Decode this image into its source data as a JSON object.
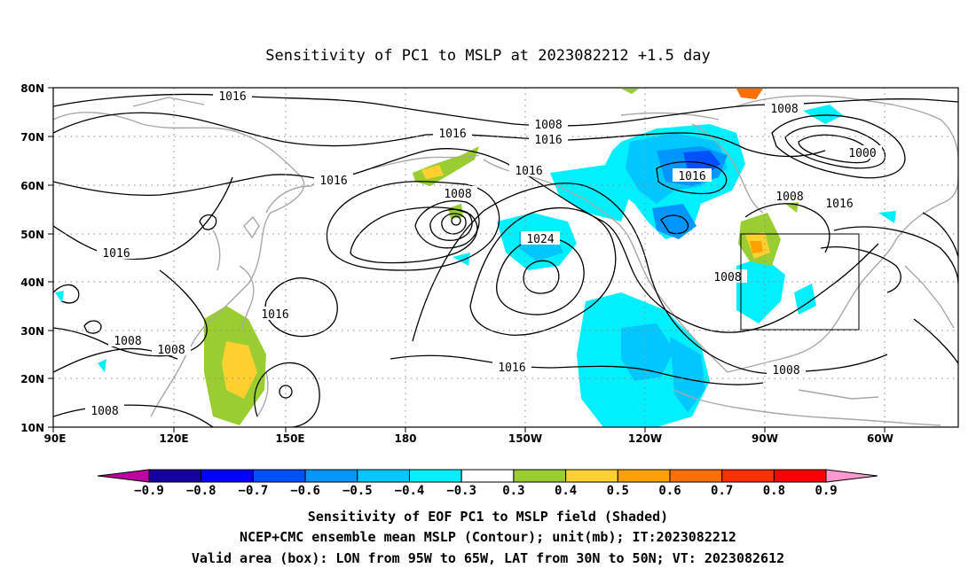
{
  "title": "Sensitivity of PC1 to MSLP at 2023082212 +1.5 day",
  "map": {
    "lon_labels": [
      "90E",
      "120E",
      "150E",
      "180",
      "150W",
      "120W",
      "90W",
      "60W"
    ],
    "lat_labels": [
      "80N",
      "70N",
      "60N",
      "50N",
      "40N",
      "30N",
      "20N",
      "10N"
    ],
    "contour_labels": [
      {
        "id": "c1",
        "text": "1016"
      },
      {
        "id": "c2",
        "text": "1008"
      },
      {
        "id": "c3",
        "text": "1016"
      },
      {
        "id": "c4",
        "text": "1016"
      },
      {
        "id": "c5",
        "text": "1008"
      },
      {
        "id": "c6",
        "text": "1016"
      },
      {
        "id": "c7",
        "text": "1000"
      },
      {
        "id": "c8",
        "text": "1016"
      },
      {
        "id": "c9",
        "text": "1016"
      },
      {
        "id": "c10",
        "text": "1008"
      },
      {
        "id": "c11",
        "text": "1008"
      },
      {
        "id": "c12",
        "text": "1016"
      },
      {
        "id": "c13",
        "text": "1024"
      },
      {
        "id": "c14",
        "text": "1016"
      },
      {
        "id": "c15",
        "text": "1008"
      },
      {
        "id": "c16",
        "text": "1016"
      },
      {
        "id": "c17",
        "text": "1008"
      },
      {
        "id": "c18",
        "text": "1008"
      },
      {
        "id": "c19",
        "text": "1016"
      },
      {
        "id": "c20",
        "text": "1008"
      },
      {
        "id": "c21",
        "text": "1008"
      }
    ],
    "valid_box": {
      "lon_west": "95W",
      "lon_east": "65W",
      "lat_south": "30N",
      "lat_north": "50N"
    }
  },
  "colorbar": {
    "labels": [
      "−0.9",
      "−0.8",
      "−0.7",
      "−0.6",
      "−0.5",
      "−0.4",
      "−0.3",
      "0.3",
      "0.4",
      "0.5",
      "0.6",
      "0.7",
      "0.8",
      "0.9"
    ],
    "colors": [
      "#1400a0",
      "#0000ff",
      "#0050ff",
      "#0096ff",
      "#00c8ff",
      "#00f0ff",
      "#ffffff",
      "#9acd32",
      "#ffd030",
      "#ffa000",
      "#ff7000",
      "#ff3000",
      "#ff0000"
    ],
    "low_arrow_color": "#c000a0",
    "high_arrow_color": "#ff9ad0"
  },
  "captions": [
    "Sensitivity of EOF PC1 to MSLP field (Shaded)",
    "NCEP+CMC ensemble mean MSLP (Contour); unit(mb); IT:2023082212",
    "Valid area (box): LON from 95W to 65W, LAT from 30N to 50N; VT: 2023082612"
  ]
}
